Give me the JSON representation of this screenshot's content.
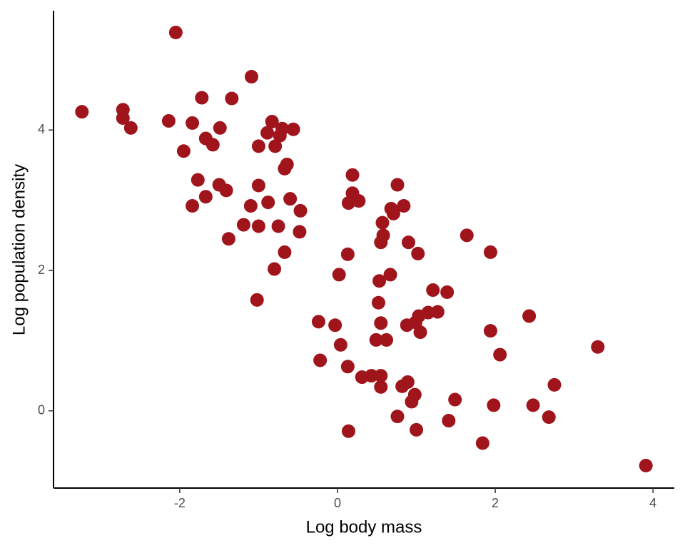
{
  "chart_data": {
    "type": "scatter",
    "x_label": "Log body mass",
    "y_label": "Log population density",
    "color": "#a0141c",
    "xlim": [
      -3.6,
      4.27
    ],
    "ylim": [
      -1.1,
      5.7
    ],
    "xticks": [
      -2,
      0,
      2,
      4
    ],
    "yticks": [
      0,
      2,
      4
    ],
    "x": [
      -3.24,
      -2.72,
      -2.72,
      -2.62,
      -2.05,
      -2.14,
      -1.72,
      -1.34,
      -1.84,
      -1.67,
      -1.58,
      -1.49,
      -1.95,
      -1.09,
      -0.83,
      -0.89,
      -0.7,
      -0.73,
      -0.56,
      -1.0,
      -0.79,
      -0.64,
      -0.67,
      -1.77,
      -1.5,
      -1.41,
      -1.0,
      -1.67,
      -1.84,
      -1.1,
      -0.88,
      -0.6,
      -0.47,
      -1.19,
      -1.0,
      -0.75,
      -0.48,
      -1.38,
      -0.67,
      -0.8,
      -1.02,
      0.19,
      0.19,
      0.14,
      0.27,
      0.76,
      0.68,
      0.71,
      0.84,
      0.57,
      0.58,
      0.55,
      0.9,
      1.02,
      1.64,
      1.94,
      0.13,
      0.02,
      0.67,
      0.53,
      1.21,
      1.39,
      0.52,
      2.43,
      -0.24,
      -0.03,
      0.55,
      1.03,
      1.15,
      1.27,
      0.99,
      0.88,
      1.05,
      1.94,
      0.49,
      0.62,
      0.04,
      3.3,
      2.06,
      -0.22,
      0.13,
      0.31,
      0.43,
      0.55,
      0.89,
      0.82,
      0.55,
      0.98,
      0.94,
      2.75,
      1.49,
      1.98,
      2.48,
      0.76,
      2.68,
      1.41,
      1.0,
      0.14,
      1.84,
      3.91
    ],
    "values": [
      4.26,
      4.29,
      4.17,
      4.03,
      5.39,
      4.13,
      4.46,
      4.45,
      4.1,
      3.88,
      3.79,
      4.03,
      3.7,
      4.76,
      4.12,
      3.96,
      4.02,
      3.92,
      4.01,
      3.77,
      3.77,
      3.51,
      3.45,
      3.29,
      3.22,
      3.14,
      3.21,
      3.05,
      2.92,
      2.92,
      2.97,
      3.02,
      2.85,
      2.65,
      2.63,
      2.63,
      2.55,
      2.45,
      2.26,
      2.02,
      1.58,
      3.36,
      3.1,
      2.96,
      2.99,
      3.22,
      2.88,
      2.81,
      2.92,
      2.68,
      2.5,
      2.4,
      2.4,
      2.24,
      2.5,
      2.26,
      2.23,
      1.94,
      1.94,
      1.85,
      1.72,
      1.69,
      1.54,
      1.35,
      1.27,
      1.22,
      1.25,
      1.35,
      1.4,
      1.41,
      1.26,
      1.22,
      1.12,
      1.14,
      1.01,
      1.01,
      0.94,
      0.91,
      0.8,
      0.72,
      0.63,
      0.48,
      0.5,
      0.5,
      0.41,
      0.35,
      0.34,
      0.23,
      0.13,
      0.37,
      0.16,
      0.08,
      0.08,
      -0.08,
      -0.09,
      -0.14,
      -0.27,
      -0.29,
      -0.46,
      -0.78
    ]
  }
}
